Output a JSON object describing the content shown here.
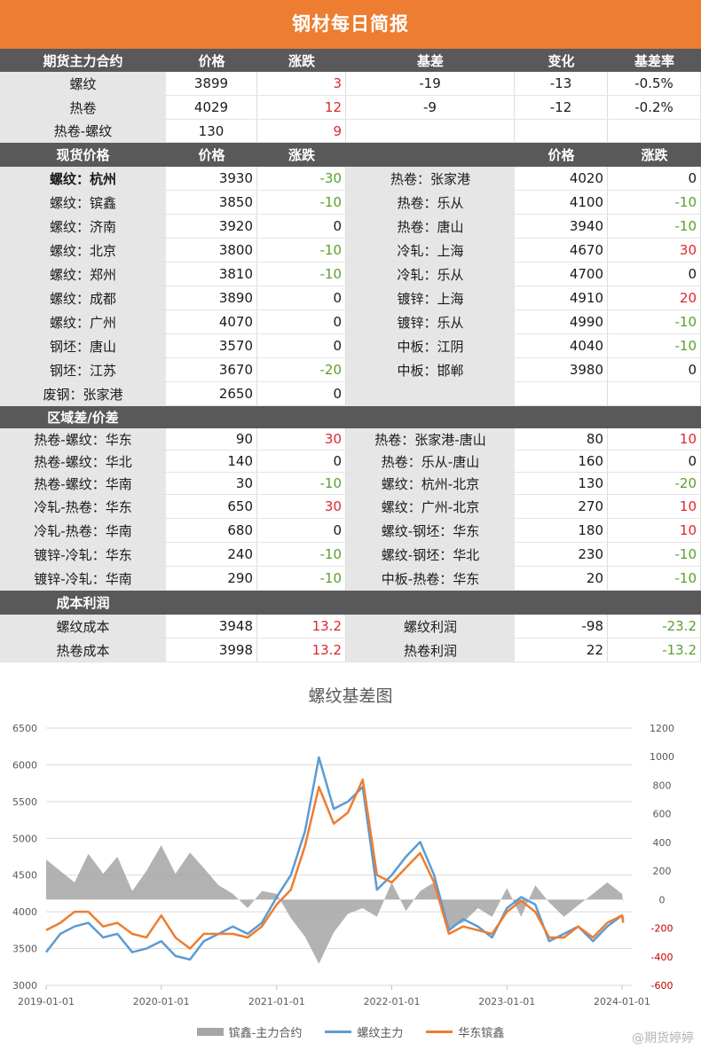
{
  "report": {
    "title": "钢材每日简报",
    "futures": {
      "headers": [
        "期货主力合约",
        "价格",
        "涨跌",
        "基差",
        "变化",
        "基差率"
      ],
      "rows": [
        {
          "name": "螺纹",
          "price": "3899",
          "change": "3",
          "basis": "-19",
          "basis_change": "-13",
          "basis_rate": "-0.5%"
        },
        {
          "name": "热卷",
          "price": "4029",
          "change": "12",
          "basis": "-9",
          "basis_change": "-12",
          "basis_rate": "-0.2%"
        },
        {
          "name": "热卷-螺纹",
          "price": "130",
          "change": "9",
          "basis": "",
          "basis_change": "",
          "basis_rate": ""
        }
      ]
    },
    "spot": {
      "headers": [
        "现货价格",
        "价格",
        "涨跌",
        "",
        "价格",
        "涨跌"
      ],
      "rows": [
        {
          "left_name": "螺纹：杭州",
          "left_price": "3930",
          "left_change": "-30",
          "right_name": "热卷：张家港",
          "right_price": "4020",
          "right_change": "0"
        },
        {
          "left_name": "螺纹：镔鑫",
          "left_price": "3850",
          "left_change": "-10",
          "right_name": "热卷：乐从",
          "right_price": "4100",
          "right_change": "-10"
        },
        {
          "left_name": "螺纹：济南",
          "left_price": "3920",
          "left_change": "0",
          "right_name": "热卷：唐山",
          "right_price": "3940",
          "right_change": "-10"
        },
        {
          "left_name": "螺纹：北京",
          "left_price": "3800",
          "left_change": "-10",
          "right_name": "冷轧：上海",
          "right_price": "4670",
          "right_change": "30"
        },
        {
          "left_name": "螺纹：郑州",
          "left_price": "3810",
          "left_change": "-10",
          "right_name": "冷轧：乐从",
          "right_price": "4700",
          "right_change": "0"
        },
        {
          "left_name": "螺纹：成都",
          "left_price": "3890",
          "left_change": "0",
          "right_name": "镀锌：上海",
          "right_price": "4910",
          "right_change": "20"
        },
        {
          "left_name": "螺纹：广州",
          "left_price": "4070",
          "left_change": "0",
          "right_name": "镀锌：乐从",
          "right_price": "4990",
          "right_change": "-10"
        },
        {
          "left_name": "钢坯：唐山",
          "left_price": "3570",
          "left_change": "0",
          "right_name": "中板：江阴",
          "right_price": "4040",
          "right_change": "-10"
        },
        {
          "left_name": "钢坯：江苏",
          "left_price": "3670",
          "left_change": "-20",
          "right_name": "中板：邯郸",
          "right_price": "3980",
          "right_change": "0"
        },
        {
          "left_name": "废钢：张家港",
          "left_price": "2650",
          "left_change": "0",
          "right_name": "",
          "right_price": "",
          "right_change": ""
        }
      ]
    },
    "regional": {
      "headers": [
        "区域差/价差",
        "",
        "",
        "",
        "",
        ""
      ],
      "rows": [
        {
          "left_name": "热卷-螺纹：华东",
          "left_value": "90",
          "left_change": "30",
          "right_name": "热卷：张家港-唐山",
          "right_value": "80",
          "right_change": "10"
        },
        {
          "left_name": "热卷-螺纹：华北",
          "left_value": "140",
          "left_change": "0",
          "right_name": "热卷：乐从-唐山",
          "right_value": "160",
          "right_change": "0"
        },
        {
          "left_name": "热卷-螺纹：华南",
          "left_value": "30",
          "left_change": "-10",
          "right_name": "螺纹：杭州-北京",
          "right_value": "130",
          "right_change": "-20"
        },
        {
          "left_name": "冷轧-热卷：华东",
          "left_value": "650",
          "left_change": "30",
          "right_name": "螺纹：广州-北京",
          "right_value": "270",
          "right_change": "10"
        },
        {
          "left_name": "冷轧-热卷：华南",
          "left_value": "680",
          "left_change": "0",
          "right_name": "螺纹-钢坯：华东",
          "right_value": "180",
          "right_change": "10"
        },
        {
          "left_name": "镀锌-冷轧：华东",
          "left_value": "240",
          "left_change": "-10",
          "right_name": "螺纹-钢坯：华北",
          "right_value": "230",
          "right_change": "-10"
        },
        {
          "left_name": "镀锌-冷轧：华南",
          "left_value": "290",
          "left_change": "-10",
          "right_name": "中板-热卷：华东",
          "right_value": "20",
          "right_change": "-10"
        }
      ]
    },
    "profit": {
      "headers": [
        "成本利润",
        "",
        "",
        "",
        "",
        ""
      ],
      "rows": [
        {
          "left_name": "螺纹成本",
          "left_value": "3948",
          "left_change": "13.2",
          "right_name": "螺纹利润",
          "right_value": "-98",
          "right_change": "-23.2"
        },
        {
          "left_name": "热卷成本",
          "left_value": "3998",
          "left_change": "13.2",
          "right_name": "热卷利润",
          "right_value": "22",
          "right_change": "-13.2"
        }
      ]
    }
  },
  "chart_data": {
    "type": "line",
    "title": "螺纹基差图",
    "x_ticks": [
      "2019-01-01",
      "2020-01-01",
      "2021-01-01",
      "2022-01-01",
      "2023-01-01",
      "2024-01-01"
    ],
    "y_left": {
      "min": 3000,
      "max": 6500,
      "ticks": [
        3000,
        3500,
        4000,
        4500,
        5000,
        5500,
        6000,
        6500
      ]
    },
    "y_right": {
      "min": -600,
      "max": 1200,
      "ticks": [
        -600,
        -400,
        -200,
        0,
        200,
        400,
        600,
        800,
        1000,
        1200
      ]
    },
    "grid": true,
    "legend_position": "bottom",
    "series": [
      {
        "name": "镔鑫-主力合约",
        "style": "area",
        "axis": "right",
        "color": "#a5a5a5",
        "x": [
          "2019-01-01",
          "2019-02-15",
          "2019-04-01",
          "2019-05-15",
          "2019-07-01",
          "2019-08-15",
          "2019-10-01",
          "2019-11-15",
          "2020-01-01",
          "2020-02-15",
          "2020-04-01",
          "2020-05-15",
          "2020-07-01",
          "2020-08-15",
          "2020-10-01",
          "2020-11-15",
          "2021-01-01",
          "2021-02-15",
          "2021-04-01",
          "2021-05-15",
          "2021-07-01",
          "2021-08-15",
          "2021-10-01",
          "2021-11-15",
          "2022-01-01",
          "2022-02-15",
          "2022-04-01",
          "2022-05-15",
          "2022-07-01",
          "2022-08-15",
          "2022-10-01",
          "2022-11-15",
          "2023-01-01",
          "2023-02-15",
          "2023-04-01",
          "2023-05-15",
          "2023-07-01",
          "2023-08-15",
          "2023-10-01",
          "2023-11-15",
          "2024-01-01",
          "2024-01-05"
        ],
        "y": [
          280,
          200,
          120,
          320,
          180,
          300,
          60,
          200,
          380,
          180,
          330,
          220,
          100,
          40,
          -60,
          60,
          40,
          -130,
          -260,
          -450,
          -230,
          -100,
          -60,
          -120,
          120,
          -80,
          60,
          120,
          -200,
          -160,
          -60,
          -120,
          80,
          -120,
          100,
          -20,
          -120,
          -40,
          40,
          120,
          40,
          -20
        ]
      },
      {
        "name": "螺纹主力",
        "style": "line",
        "axis": "left",
        "color": "#5b9bd5",
        "x": [
          "2019-01-01",
          "2019-02-15",
          "2019-04-01",
          "2019-05-15",
          "2019-07-01",
          "2019-08-15",
          "2019-10-01",
          "2019-11-15",
          "2020-01-01",
          "2020-02-15",
          "2020-04-01",
          "2020-05-15",
          "2020-07-01",
          "2020-08-15",
          "2020-10-01",
          "2020-11-15",
          "2021-01-01",
          "2021-02-15",
          "2021-04-01",
          "2021-05-15",
          "2021-07-01",
          "2021-08-15",
          "2021-10-01",
          "2021-11-15",
          "2022-01-01",
          "2022-02-15",
          "2022-04-01",
          "2022-05-15",
          "2022-07-01",
          "2022-08-15",
          "2022-10-01",
          "2022-11-15",
          "2023-01-01",
          "2023-02-15",
          "2023-04-01",
          "2023-05-15",
          "2023-07-01",
          "2023-08-15",
          "2023-10-01",
          "2023-11-15",
          "2024-01-01",
          "2024-01-05"
        ],
        "y": [
          3450,
          3700,
          3800,
          3850,
          3650,
          3700,
          3450,
          3500,
          3600,
          3400,
          3350,
          3600,
          3700,
          3800,
          3700,
          3850,
          4200,
          4500,
          5100,
          6100,
          5400,
          5500,
          5700,
          4300,
          4500,
          4750,
          4950,
          4500,
          3750,
          3900,
          3800,
          3650,
          4050,
          4200,
          4100,
          3600,
          3700,
          3800,
          3600,
          3800,
          3950,
          3900
        ]
      },
      {
        "name": "华东镔鑫",
        "style": "line",
        "axis": "left",
        "color": "#ed7d31",
        "x": [
          "2019-01-01",
          "2019-02-15",
          "2019-04-01",
          "2019-05-15",
          "2019-07-01",
          "2019-08-15",
          "2019-10-01",
          "2019-11-15",
          "2020-01-01",
          "2020-02-15",
          "2020-04-01",
          "2020-05-15",
          "2020-07-01",
          "2020-08-15",
          "2020-10-01",
          "2020-11-15",
          "2021-01-01",
          "2021-02-15",
          "2021-04-01",
          "2021-05-15",
          "2021-07-01",
          "2021-08-15",
          "2021-10-01",
          "2021-11-15",
          "2022-01-01",
          "2022-02-15",
          "2022-04-01",
          "2022-05-15",
          "2022-07-01",
          "2022-08-15",
          "2022-10-01",
          "2022-11-15",
          "2023-01-01",
          "2023-02-15",
          "2023-04-01",
          "2023-05-15",
          "2023-07-01",
          "2023-08-15",
          "2023-10-01",
          "2023-11-15",
          "2024-01-01",
          "2024-01-05"
        ],
        "y": [
          3750,
          3850,
          4000,
          4000,
          3800,
          3850,
          3700,
          3650,
          3950,
          3650,
          3500,
          3700,
          3700,
          3700,
          3650,
          3800,
          4100,
          4300,
          4900,
          5700,
          5200,
          5350,
          5800,
          4500,
          4400,
          4600,
          4800,
          4400,
          3700,
          3800,
          3750,
          3700,
          4000,
          4150,
          4000,
          3650,
          3650,
          3800,
          3650,
          3850,
          3950,
          3850
        ]
      }
    ]
  },
  "watermark": "@期货婷婷"
}
